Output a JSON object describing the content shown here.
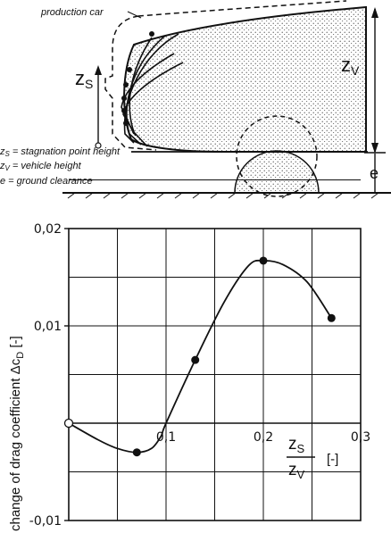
{
  "sketch": {
    "production_car_label": "production car",
    "zs_symbol": "z",
    "zs_sub": "S",
    "zv_symbol": "z",
    "zv_sub": "V",
    "e_symbol": "e",
    "legend": [
      {
        "sym": "z",
        "sub": "S",
        "text": " = stagnation point height"
      },
      {
        "sym": "z",
        "sub": "V",
        "text": " = vehicle height"
      },
      {
        "sym": "e",
        "sub": "",
        "text": " = ground clearance"
      }
    ]
  },
  "chart_data": {
    "type": "line",
    "ylabel": "change of drag coefficient Δc",
    "ylabel_sub": "D",
    "ylabel_unit": " [-]",
    "xlabel_num": "z",
    "xlabel_num_sub": "S",
    "xlabel_den": "z",
    "xlabel_den_sub": "V",
    "xlabel_unit": "[-]",
    "xlim": [
      0,
      0.3
    ],
    "ylim": [
      -0.01,
      0.02
    ],
    "x_ticks": [
      {
        "value": 0.1,
        "label": "0,1"
      },
      {
        "value": 0.2,
        "label": "0,2"
      },
      {
        "value": 0.3,
        "label": "0,3"
      }
    ],
    "y_ticks": [
      {
        "value": 0.02,
        "label": "0,02"
      },
      {
        "value": 0.01,
        "label": "0,01"
      },
      {
        "value": -0.01,
        "label": "-0,01"
      }
    ],
    "grid": true,
    "series": [
      {
        "points": [
          {
            "x": 0.0,
            "y": 0.0,
            "open": true
          },
          {
            "x": 0.07,
            "y": -0.003
          },
          {
            "x": 0.13,
            "y": 0.0065
          },
          {
            "x": 0.2,
            "y": 0.0167
          },
          {
            "x": 0.27,
            "y": 0.0108
          }
        ],
        "curve": [
          [
            0.0,
            0.0
          ],
          [
            0.03,
            -0.0017
          ],
          [
            0.05,
            -0.0026
          ],
          [
            0.07,
            -0.003
          ],
          [
            0.085,
            -0.0026
          ],
          [
            0.095,
            -0.0013
          ],
          [
            0.1,
            0.0
          ],
          [
            0.13,
            0.0065
          ],
          [
            0.16,
            0.0125
          ],
          [
            0.185,
            0.0162
          ],
          [
            0.2,
            0.0167
          ],
          [
            0.22,
            0.0163
          ],
          [
            0.245,
            0.0145
          ],
          [
            0.27,
            0.0108
          ]
        ]
      }
    ]
  }
}
